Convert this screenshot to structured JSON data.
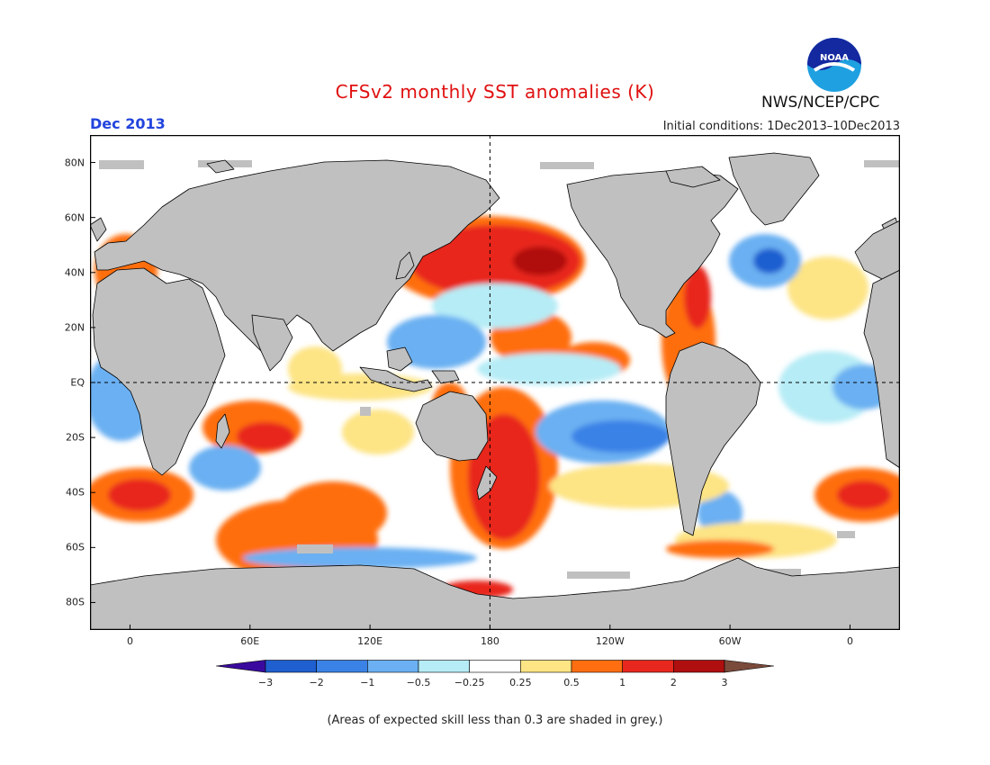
{
  "title": "CFSv2 monthly SST anomalies (K)",
  "month": "Dec 2013",
  "initial_conditions": "Initial conditions: 1Dec2013–10Dec2013",
  "agency": "NWS/NCEP/CPC",
  "logo_text": "NOAA",
  "footnote": "(Areas of expected skill less than 0.3 are shaded in grey.)",
  "x_axis": {
    "ticks": [
      {
        "label": "0",
        "lon": 0
      },
      {
        "label": "60E",
        "lon": 60
      },
      {
        "label": "120E",
        "lon": 120
      },
      {
        "label": "180",
        "lon": 180
      },
      {
        "label": "120W",
        "lon": 240
      },
      {
        "label": "60W",
        "lon": 300
      },
      {
        "label": "0",
        "lon": 360
      }
    ],
    "lon_range": [
      -20,
      385
    ]
  },
  "y_axis": {
    "ticks": [
      {
        "label": "80N",
        "lat": 80
      },
      {
        "label": "60N",
        "lat": 60
      },
      {
        "label": "40N",
        "lat": 40
      },
      {
        "label": "20N",
        "lat": 20
      },
      {
        "label": "EQ",
        "lat": 0
      },
      {
        "label": "20S",
        "lat": -20
      },
      {
        "label": "40S",
        "lat": -40
      },
      {
        "label": "60S",
        "lat": -60
      },
      {
        "label": "80S",
        "lat": -80
      }
    ],
    "lat_range": [
      -90,
      90
    ]
  },
  "colorbar": {
    "labels": [
      "−3",
      "−2",
      "−1",
      "−0.5",
      "−0.25",
      "0.25",
      "0.5",
      "1",
      "2",
      "3"
    ],
    "colors": [
      "#3a0a9e",
      "#1f5fd0",
      "#3b82e6",
      "#6ab0f2",
      "#b6ecf6",
      "#ffffff",
      "#fde484",
      "#ff6e10",
      "#e8281e",
      "#b00f0f",
      "#7a4a3a"
    ]
  },
  "colors": {
    "land": "#c0c0c0",
    "skill_mask": "#c0c0c0",
    "ocean_neutral": "#ffffff",
    "title": "#e01010",
    "month": "#2244dd"
  }
}
